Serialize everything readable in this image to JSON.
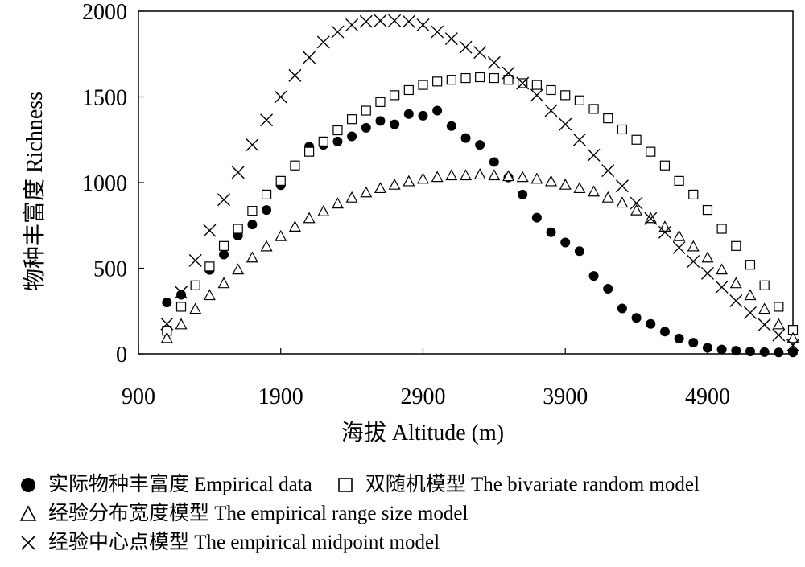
{
  "chart_data": {
    "type": "scatter",
    "xlabel": "海拔 Altitude (m)",
    "ylabel": "物种丰富度 Richness",
    "xlim": [
      900,
      5500
    ],
    "ylim": [
      0,
      2000
    ],
    "xticks": [
      "900",
      "1900",
      "2900",
      "3900",
      "4900"
    ],
    "yticks": [
      "0",
      "500",
      "1000",
      "1500",
      "2000"
    ],
    "grid": false,
    "legend_position": "bottom",
    "series": [
      {
        "name": "实际物种丰富度 Empirical data",
        "marker": "filled-circle",
        "points": [
          [
            1100,
            300
          ],
          [
            1200,
            345
          ],
          [
            1300,
            400
          ],
          [
            1400,
            490
          ],
          [
            1500,
            580
          ],
          [
            1600,
            690
          ],
          [
            1700,
            755
          ],
          [
            1800,
            840
          ],
          [
            1900,
            985
          ],
          [
            2000,
            1100
          ],
          [
            2100,
            1210
          ],
          [
            2200,
            1220
          ],
          [
            2300,
            1240
          ],
          [
            2400,
            1270
          ],
          [
            2500,
            1320
          ],
          [
            2600,
            1360
          ],
          [
            2700,
            1340
          ],
          [
            2800,
            1400
          ],
          [
            2900,
            1390
          ],
          [
            3000,
            1420
          ],
          [
            3100,
            1330
          ],
          [
            3200,
            1260
          ],
          [
            3300,
            1220
          ],
          [
            3400,
            1120
          ],
          [
            3500,
            1030
          ],
          [
            3600,
            930
          ],
          [
            3700,
            795
          ],
          [
            3800,
            710
          ],
          [
            3900,
            650
          ],
          [
            4000,
            600
          ],
          [
            4100,
            455
          ],
          [
            4200,
            380
          ],
          [
            4300,
            265
          ],
          [
            4400,
            210
          ],
          [
            4500,
            175
          ],
          [
            4600,
            130
          ],
          [
            4700,
            90
          ],
          [
            4800,
            65
          ],
          [
            4900,
            35
          ],
          [
            5000,
            25
          ],
          [
            5100,
            18
          ],
          [
            5200,
            14
          ],
          [
            5300,
            10
          ],
          [
            5400,
            8
          ],
          [
            5500,
            8
          ]
        ]
      },
      {
        "name": "双随机模型 The bivariate random model",
        "marker": "open-square",
        "points": [
          [
            1100,
            135
          ],
          [
            1200,
            275
          ],
          [
            1300,
            400
          ],
          [
            1400,
            510
          ],
          [
            1500,
            630
          ],
          [
            1600,
            730
          ],
          [
            1700,
            835
          ],
          [
            1800,
            930
          ],
          [
            1900,
            1010
          ],
          [
            2000,
            1100
          ],
          [
            2100,
            1180
          ],
          [
            2200,
            1240
          ],
          [
            2300,
            1305
          ],
          [
            2400,
            1370
          ],
          [
            2500,
            1420
          ],
          [
            2600,
            1470
          ],
          [
            2700,
            1510
          ],
          [
            2800,
            1540
          ],
          [
            2900,
            1570
          ],
          [
            3000,
            1590
          ],
          [
            3100,
            1600
          ],
          [
            3200,
            1610
          ],
          [
            3300,
            1615
          ],
          [
            3400,
            1610
          ],
          [
            3500,
            1600
          ],
          [
            3600,
            1580
          ],
          [
            3700,
            1570
          ],
          [
            3800,
            1540
          ],
          [
            3900,
            1510
          ],
          [
            4000,
            1480
          ],
          [
            4100,
            1430
          ],
          [
            4200,
            1375
          ],
          [
            4300,
            1310
          ],
          [
            4400,
            1250
          ],
          [
            4500,
            1180
          ],
          [
            4600,
            1100
          ],
          [
            4700,
            1010
          ],
          [
            4800,
            930
          ],
          [
            4900,
            840
          ],
          [
            5000,
            730
          ],
          [
            5100,
            630
          ],
          [
            5200,
            520
          ],
          [
            5300,
            400
          ],
          [
            5400,
            275
          ],
          [
            5500,
            140
          ]
        ]
      },
      {
        "name": "经验分布宽度模型 The empirical range size model",
        "marker": "open-triangle",
        "points": [
          [
            1100,
            90
          ],
          [
            1200,
            170
          ],
          [
            1300,
            260
          ],
          [
            1400,
            340
          ],
          [
            1500,
            410
          ],
          [
            1600,
            490
          ],
          [
            1700,
            560
          ],
          [
            1800,
            625
          ],
          [
            1900,
            685
          ],
          [
            2000,
            740
          ],
          [
            2100,
            790
          ],
          [
            2200,
            830
          ],
          [
            2300,
            875
          ],
          [
            2400,
            910
          ],
          [
            2500,
            940
          ],
          [
            2600,
            965
          ],
          [
            2700,
            985
          ],
          [
            2800,
            1005
          ],
          [
            2900,
            1020
          ],
          [
            3000,
            1030
          ],
          [
            3100,
            1040
          ],
          [
            3200,
            1040
          ],
          [
            3300,
            1045
          ],
          [
            3400,
            1040
          ],
          [
            3500,
            1035
          ],
          [
            3600,
            1030
          ],
          [
            3700,
            1020
          ],
          [
            3800,
            1005
          ],
          [
            3900,
            985
          ],
          [
            4000,
            965
          ],
          [
            4100,
            945
          ],
          [
            4200,
            910
          ],
          [
            4300,
            880
          ],
          [
            4400,
            835
          ],
          [
            4500,
            790
          ],
          [
            4600,
            740
          ],
          [
            4700,
            685
          ],
          [
            4800,
            625
          ],
          [
            4900,
            560
          ],
          [
            5000,
            490
          ],
          [
            5100,
            410
          ],
          [
            5200,
            340
          ],
          [
            5300,
            260
          ],
          [
            5400,
            170
          ],
          [
            5500,
            90
          ]
        ]
      },
      {
        "name": "经验中心点模型 The empirical midpoint model",
        "marker": "x",
        "points": [
          [
            1100,
            175
          ],
          [
            1200,
            360
          ],
          [
            1300,
            545
          ],
          [
            1400,
            720
          ],
          [
            1500,
            900
          ],
          [
            1600,
            1060
          ],
          [
            1700,
            1220
          ],
          [
            1800,
            1365
          ],
          [
            1900,
            1500
          ],
          [
            2000,
            1625
          ],
          [
            2100,
            1730
          ],
          [
            2200,
            1820
          ],
          [
            2300,
            1880
          ],
          [
            2400,
            1920
          ],
          [
            2500,
            1940
          ],
          [
            2600,
            1945
          ],
          [
            2700,
            1945
          ],
          [
            2800,
            1940
          ],
          [
            2900,
            1920
          ],
          [
            3000,
            1880
          ],
          [
            3100,
            1840
          ],
          [
            3200,
            1790
          ],
          [
            3300,
            1760
          ],
          [
            3400,
            1700
          ],
          [
            3500,
            1640
          ],
          [
            3600,
            1580
          ],
          [
            3700,
            1510
          ],
          [
            3800,
            1420
          ],
          [
            3900,
            1340
          ],
          [
            4000,
            1250
          ],
          [
            4100,
            1160
          ],
          [
            4200,
            1070
          ],
          [
            4300,
            980
          ],
          [
            4400,
            880
          ],
          [
            4500,
            790
          ],
          [
            4600,
            710
          ],
          [
            4700,
            620
          ],
          [
            4800,
            540
          ],
          [
            4900,
            470
          ],
          [
            5000,
            390
          ],
          [
            5100,
            310
          ],
          [
            5200,
            240
          ],
          [
            5300,
            170
          ],
          [
            5400,
            110
          ],
          [
            5500,
            50
          ]
        ]
      }
    ]
  }
}
